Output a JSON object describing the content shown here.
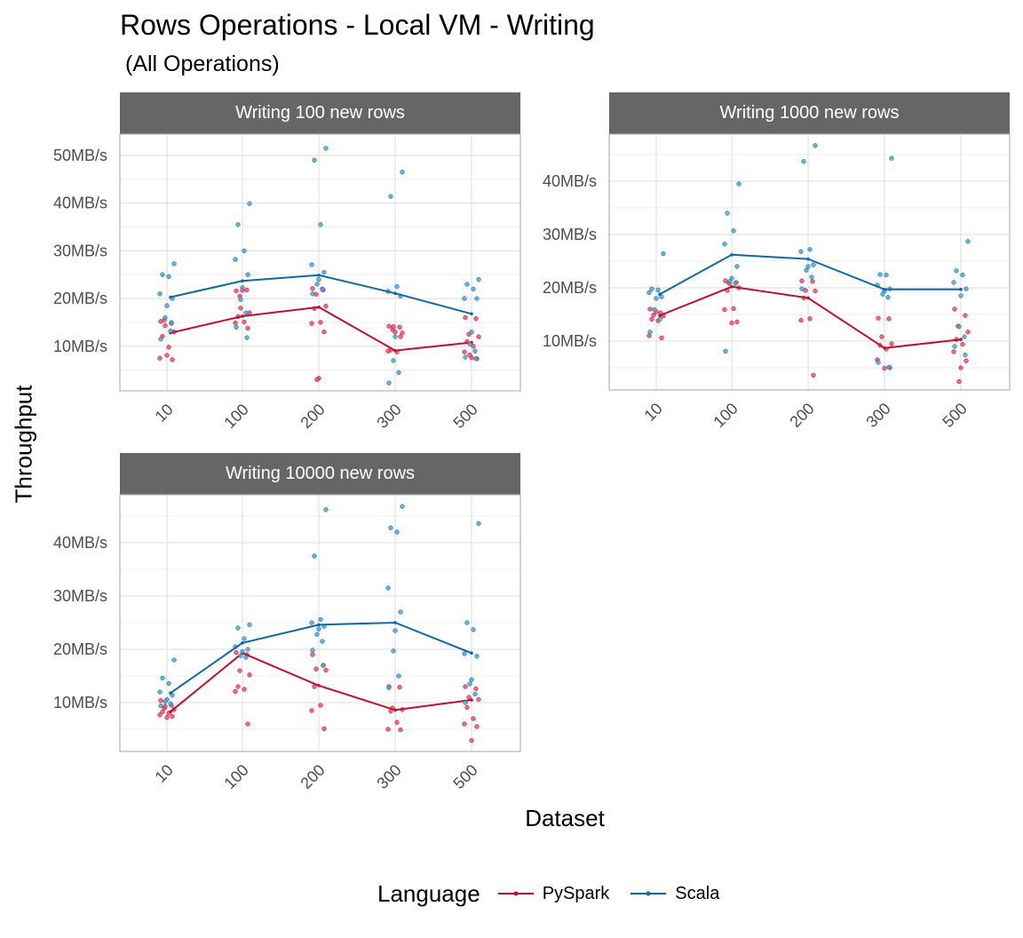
{
  "page": {
    "title": "Rows Operations - Local VM - Writing",
    "subtitle": "(All Operations)",
    "ylabel": "Throughput",
    "xlabel": "Dataset"
  },
  "legend": {
    "title": "Language",
    "items": [
      {
        "label": "PySpark",
        "color": "#c0102e"
      },
      {
        "label": "Scala",
        "color": "#0b6aa6"
      }
    ]
  },
  "colors": {
    "pyspark_line": "#c0102e",
    "pyspark_point": "#e8506a",
    "scala_line": "#0b6aa6",
    "scala_point": "#4aa3d8",
    "strip_bg": "#666666",
    "grid": "#dedede"
  },
  "chart_data": [
    {
      "type": "line",
      "title": "Writing 100 new rows",
      "categories": [
        "10",
        "100",
        "200",
        "300",
        "500"
      ],
      "ylim": [
        0,
        55
      ],
      "y_ticks": [
        10,
        20,
        30,
        40,
        50
      ],
      "y_tick_labels": [
        "10MB/s",
        "20MB/s",
        "30MB/s",
        "40MB/s",
        "50MB/s"
      ],
      "series": [
        {
          "name": "PySpark",
          "means": [
            12.8,
            16.3,
            18.2,
            9.1,
            10.8
          ],
          "points": [
            [
              15.2,
              14.8,
              15.5,
              13.0,
              12.1,
              9.8,
              7.5,
              7.2,
              8.1,
              14.3
            ],
            [
              21.6,
              21.8,
              20.5,
              17.0,
              16.2,
              15.1,
              14.9,
              13.8,
              21.7,
              18.0
            ],
            [
              22.1,
              21.8,
              20.9,
              18.4,
              17.9,
              15.0,
              14.8,
              13.0,
              3.3,
              3.0,
              22.0
            ],
            [
              14.2,
              14.0,
              13.5,
              12.8,
              9.2,
              8.8,
              9.0,
              12.0,
              13.0,
              14.1
            ],
            [
              16.0,
              15.8,
              12.5,
              12.0,
              11.0,
              10.0,
              8.8,
              7.4,
              7.6,
              8.2
            ]
          ]
        },
        {
          "name": "Scala",
          "means": [
            20.3,
            23.7,
            24.9,
            21.1,
            16.8
          ],
          "points": [
            [
              27.3,
              25.0,
              24.6,
              21.0,
              20.0,
              18.5,
              16.0,
              13.2,
              11.5,
              15.0
            ],
            [
              39.9,
              35.5,
              30.0,
              28.2,
              25.0,
              22.3,
              19.8,
              17.0,
              14.0,
              11.8
            ],
            [
              51.5,
              49.0,
              35.5,
              27.1,
              25.5,
              24.0,
              23.0,
              21.9,
              21.0
            ],
            [
              46.5,
              41.4,
              22.5,
              21.5,
              20.5,
              12.0,
              7.0,
              4.5,
              2.3
            ],
            [
              24.0,
              23.0,
              22.0,
              20.0,
              20.0,
              13.0,
              10.5,
              9.0,
              7.7,
              7.4
            ]
          ]
        }
      ]
    },
    {
      "type": "line",
      "title": "Writing 1000 new rows",
      "categories": [
        "10",
        "100",
        "200",
        "300",
        "500"
      ],
      "ylim": [
        0,
        50
      ],
      "y_ticks": [
        10,
        20,
        30,
        40
      ],
      "y_tick_labels": [
        "10MB/s",
        "20MB/s",
        "30MB/s",
        "40MB/s"
      ],
      "series": [
        {
          "name": "PySpark",
          "means": [
            14.8,
            20.2,
            18.1,
            8.7,
            10.3
          ],
          "points": [
            [
              16.0,
              15.3,
              14.9,
              14.7,
              14.1,
              13.8,
              11.0,
              10.6,
              15.5
            ],
            [
              21.3,
              21.0,
              20.8,
              20.0,
              19.5,
              16.1,
              15.9,
              13.6,
              13.4
            ],
            [
              21.3,
              21.2,
              19.5,
              19.4,
              18.1,
              14.2,
              13.9,
              3.6
            ],
            [
              14.3,
              14.2,
              10.8,
              9.5,
              9.2,
              8.5,
              6.5,
              5.0,
              4.9
            ],
            [
              16.0,
              14.8,
              12.8,
              11.7,
              10.3,
              9.4,
              8.0,
              6.3,
              5.0,
              2.4
            ]
          ]
        },
        {
          "name": "Scala",
          "means": [
            18.8,
            26.2,
            25.4,
            19.7,
            19.7
          ],
          "points": [
            [
              26.4,
              19.8,
              19.6,
              19.1,
              18.3,
              18.0,
              15.9,
              14.1,
              11.7
            ],
            [
              39.5,
              34.0,
              30.7,
              28.2,
              24.0,
              21.8,
              21.2,
              20.8,
              8.1
            ],
            [
              46.7,
              43.7,
              27.2,
              26.8,
              24.3,
              24.0,
              23.3,
              22.0,
              19.8
            ],
            [
              44.3,
              22.5,
              22.4,
              20.5,
              19.8,
              19.4,
              18.8,
              18.2,
              6.0,
              5.1
            ],
            [
              28.7,
              23.2,
              22.4,
              21.0,
              19.8,
              18.5,
              12.7,
              10.8,
              9.0,
              7.4
            ]
          ]
        }
      ]
    },
    {
      "type": "line",
      "title": "Writing 10000 new rows",
      "categories": [
        "10",
        "100",
        "200",
        "300",
        "500"
      ],
      "ylim": [
        0,
        50
      ],
      "y_ticks": [
        10,
        20,
        30,
        40
      ],
      "y_tick_labels": [
        "10MB/s",
        "20MB/s",
        "30MB/s",
        "40MB/s"
      ],
      "series": [
        {
          "name": "PySpark",
          "means": [
            8.3,
            19.3,
            13.2,
            8.6,
            10.5
          ],
          "points": [
            [
              10.4,
              9.5,
              9.0,
              8.7,
              8.3,
              8.0,
              7.7,
              7.4,
              7.2,
              9.3
            ],
            [
              19.4,
              19.0,
              16.0,
              15.2,
              13.0,
              12.5,
              12.1,
              6.0
            ],
            [
              19.0,
              17.0,
              16.3,
              16.1,
              13.0,
              9.5,
              8.5,
              5.1
            ],
            [
              13.0,
              12.9,
              9.0,
              8.7,
              8.4,
              6.3,
              5.0,
              4.9
            ],
            [
              13.0,
              12.6,
              11.0,
              10.6,
              9.1,
              7.0,
              6.0,
              5.5,
              2.9
            ]
          ]
        },
        {
          "name": "Scala",
          "means": [
            11.8,
            21.2,
            24.6,
            25.0,
            19.3
          ],
          "points": [
            [
              18.0,
              14.6,
              13.6,
              12.0,
              11.4,
              10.6,
              10.2,
              9.8,
              9.4
            ],
            [
              24.6,
              24.0,
              22.0,
              20.5,
              20.0,
              19.6,
              18.8,
              18.5
            ],
            [
              46.2,
              37.5,
              25.6,
              25.0,
              24.3,
              23.8,
              22.8,
              21.5,
              19.8,
              17.0
            ],
            [
              46.8,
              42.8,
              42.0,
              31.5,
              27.0,
              23.5,
              19.7,
              15.0,
              12.8
            ],
            [
              43.6,
              25.0,
              23.7,
              19.2,
              18.7,
              14.3,
              13.5,
              11.6,
              10.0
            ]
          ]
        }
      ]
    }
  ]
}
